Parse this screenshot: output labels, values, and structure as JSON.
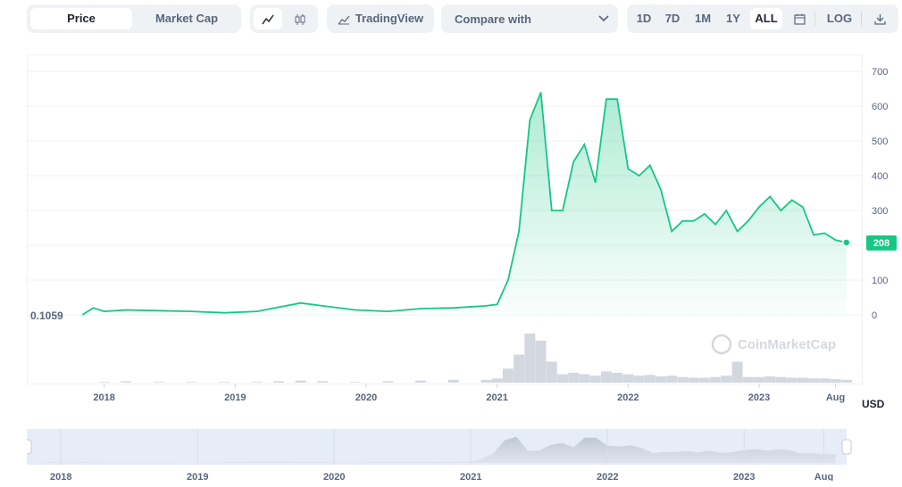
{
  "toolbar": {
    "tabs": [
      "Price",
      "Market Cap"
    ],
    "tradingview_label": "TradingView",
    "compare_label": "Compare with",
    "ranges": [
      "1D",
      "7D",
      "1M",
      "1Y",
      "ALL"
    ],
    "active_range": "ALL",
    "log_label": "LOG"
  },
  "watermark": "CoinMarketCap",
  "currency": "USD",
  "chart_data": {
    "type": "area",
    "x": [
      "2017-11",
      "2017-12",
      "2018-01",
      "2018-03",
      "2018-06",
      "2018-09",
      "2018-12",
      "2019-03",
      "2019-05",
      "2019-07",
      "2019-09",
      "2019-12",
      "2020-03",
      "2020-06",
      "2020-09",
      "2020-12",
      "2021-01",
      "2021-02",
      "2021-03",
      "2021-04",
      "2021-05",
      "2021-06",
      "2021-07",
      "2021-08",
      "2021-09",
      "2021-10",
      "2021-11",
      "2021-12",
      "2022-01",
      "2022-02",
      "2022-03",
      "2022-04",
      "2022-05",
      "2022-06",
      "2022-07",
      "2022-08",
      "2022-09",
      "2022-10",
      "2022-11",
      "2022-12",
      "2023-01",
      "2023-02",
      "2023-03",
      "2023-04",
      "2023-05",
      "2023-06",
      "2023-07",
      "2023-08",
      "2023-09"
    ],
    "values": [
      0.1059,
      20,
      10,
      14,
      12,
      10,
      6,
      10,
      22,
      34,
      26,
      14,
      10,
      18,
      20,
      26,
      30,
      100,
      240,
      560,
      640,
      300,
      300,
      440,
      490,
      380,
      620,
      620,
      420,
      400,
      430,
      360,
      240,
      270,
      270,
      290,
      260,
      300,
      240,
      270,
      310,
      340,
      300,
      330,
      310,
      230,
      235,
      215,
      208
    ],
    "volume_values": [
      0,
      0,
      1,
      2,
      1,
      1,
      1,
      1,
      2,
      3,
      2,
      1,
      2,
      3,
      4,
      4,
      6,
      20,
      40,
      70,
      60,
      30,
      12,
      14,
      12,
      10,
      16,
      14,
      12,
      10,
      11,
      9,
      10,
      8,
      7,
      7,
      8,
      10,
      30,
      8,
      8,
      9,
      8,
      7,
      7,
      6,
      6,
      5,
      4
    ],
    "y_ticks": [
      0,
      100,
      200,
      300,
      400,
      500,
      600,
      700
    ],
    "ylim": [
      0,
      700
    ],
    "x_ticks": [
      "2018",
      "2019",
      "2020",
      "2021",
      "2022",
      "2023",
      "Aug"
    ],
    "start_label": "0.1059",
    "current_label": "208",
    "line_color": "#16c784",
    "grid": true
  },
  "navigator": {
    "x_ticks": [
      "2018",
      "2019",
      "2020",
      "2021",
      "2022",
      "2023",
      "Aug"
    ]
  }
}
